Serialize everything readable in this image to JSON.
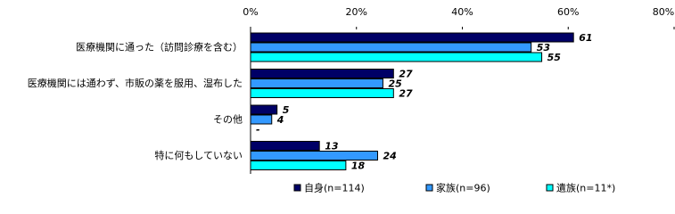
{
  "chart_data": {
    "type": "hbar",
    "categories": [
      "医療機関に通った（訪問診療を含む）",
      "医療機関には通わず、市販の薬を服用、湿布した",
      "その他",
      "特に何もしていない"
    ],
    "series": [
      {
        "name": "自身(n=114)",
        "color": "#000066",
        "values": [
          61,
          27,
          5,
          13
        ]
      },
      {
        "name": "家族(n=96)",
        "color": "#3399ff",
        "values": [
          53,
          25,
          4,
          24
        ]
      },
      {
        "name": "遺族(n=11*)",
        "color": "#00ffff",
        "values": [
          55,
          27,
          null,
          18
        ],
        "value_labels": [
          "55",
          "27",
          "-",
          "18"
        ]
      }
    ],
    "xlim": [
      0,
      80
    ],
    "xticks": [
      {
        "value": 0,
        "label": "0%"
      },
      {
        "value": 20,
        "label": "20%"
      },
      {
        "value": 40,
        "label": "40%"
      },
      {
        "value": 60,
        "label": "60%"
      },
      {
        "value": 80,
        "label": "80%"
      }
    ],
    "grid": false,
    "legend": "bottom"
  }
}
